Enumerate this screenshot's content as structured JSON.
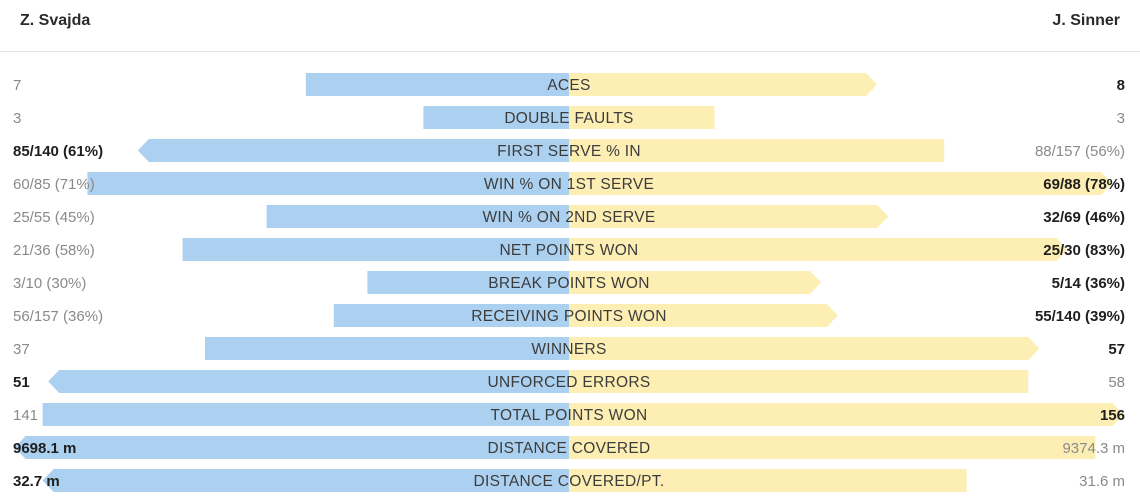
{
  "players": {
    "left": "Z. Svajda",
    "right": "J. Sinner"
  },
  "colors": {
    "left_bar": "#acd1f0",
    "right_bar": "#fdeeb3",
    "divider": "#e2e2e2"
  },
  "chart_data": {
    "type": "bar",
    "orientation": "horizontal-diverging",
    "categories": [
      "ACES",
      "DOUBLE FAULTS",
      "FIRST SERVE % IN",
      "WIN % ON 1ST SERVE",
      "WIN % ON 2ND SERVE",
      "NET POINTS WON",
      "BREAK POINTS WON",
      "RECEIVING POINTS WON",
      "WINNERS",
      "UNFORCED ERRORS",
      "TOTAL POINTS WON",
      "DISTANCE COVERED",
      "DISTANCE COVERED/PT."
    ],
    "series": [
      {
        "name": "Z. Svajda",
        "labels": [
          "7",
          "3",
          "85/140 (61%)",
          "60/85 (71%)",
          "25/55 (45%)",
          "21/36 (58%)",
          "3/10 (30%)",
          "56/157 (36%)",
          "37",
          "51",
          "141",
          "9698.1 m",
          "32.7 m"
        ],
        "values": [
          0.47,
          0.26,
          0.77,
          0.86,
          0.54,
          0.69,
          0.36,
          0.42,
          0.65,
          0.93,
          0.94,
          0.99,
          0.94
        ],
        "highlight": [
          false,
          false,
          true,
          false,
          false,
          false,
          false,
          false,
          false,
          true,
          false,
          true,
          true
        ]
      },
      {
        "name": "J. Sinner",
        "labels": [
          "8",
          "3",
          "88/157 (56%)",
          "69/88 (78%)",
          "32/69 (46%)",
          "25/30 (83%)",
          "5/14 (36%)",
          "55/140 (39%)",
          "57",
          "58",
          "156",
          "9374.3 m",
          "31.6 m"
        ],
        "values": [
          0.55,
          0.26,
          0.67,
          0.97,
          0.57,
          0.89,
          0.45,
          0.48,
          0.84,
          0.82,
          0.99,
          0.94,
          0.71
        ],
        "highlight": [
          true,
          false,
          false,
          true,
          true,
          true,
          true,
          true,
          true,
          false,
          true,
          false,
          false
        ]
      }
    ],
    "leader_arrow": [
      "right",
      "none",
      "left",
      "right",
      "right",
      "right",
      "right",
      "right",
      "right",
      "left",
      "right",
      "left",
      "left"
    ]
  }
}
